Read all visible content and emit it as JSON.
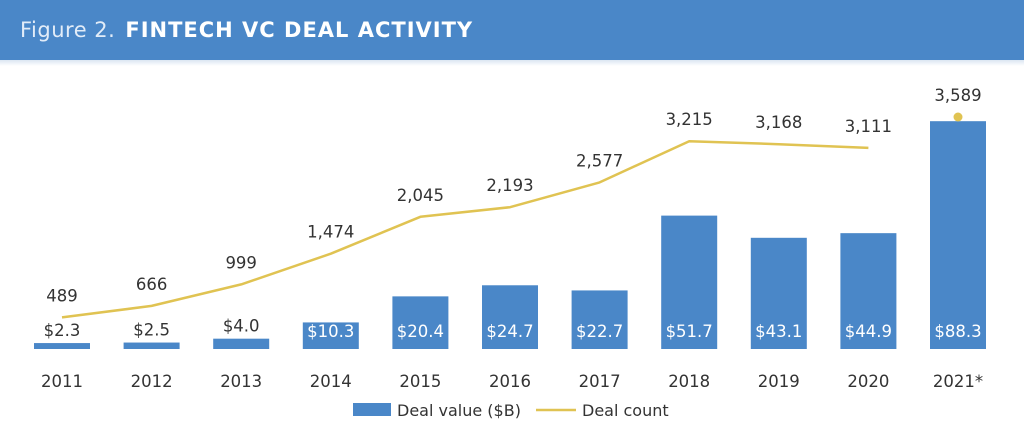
{
  "figure": {
    "label": "Figure 2.",
    "title": "FINTECH VC DEAL ACTIVITY"
  },
  "chart_data": {
    "type": "bar",
    "categories": [
      "2011",
      "2012",
      "2013",
      "2014",
      "2015",
      "2016",
      "2017",
      "2018",
      "2019",
      "2020",
      "2021*"
    ],
    "series": [
      {
        "name": "Deal value ($B)",
        "type": "bar",
        "values": [
          2.3,
          2.5,
          4.0,
          10.3,
          20.4,
          24.7,
          22.7,
          51.7,
          43.1,
          44.9,
          88.3
        ],
        "labels": [
          "$2.3",
          "$2.5",
          "$4.0",
          "$10.3",
          "$20.4",
          "$24.7",
          "$22.7",
          "$51.7",
          "$43.1",
          "$44.9",
          "$88.3"
        ],
        "color": "#4a87c8"
      },
      {
        "name": "Deal count",
        "type": "line",
        "values": [
          489,
          666,
          999,
          1474,
          2045,
          2193,
          2577,
          3215,
          3168,
          3111,
          3589
        ],
        "labels": [
          "489",
          "666",
          "999",
          "1,474",
          "2,045",
          "2,193",
          "2,577",
          "3,215",
          "3,168",
          "3,111",
          "3,589"
        ],
        "color": "#e0c352"
      }
    ],
    "legend_position": "bottom-center",
    "grid": false
  }
}
